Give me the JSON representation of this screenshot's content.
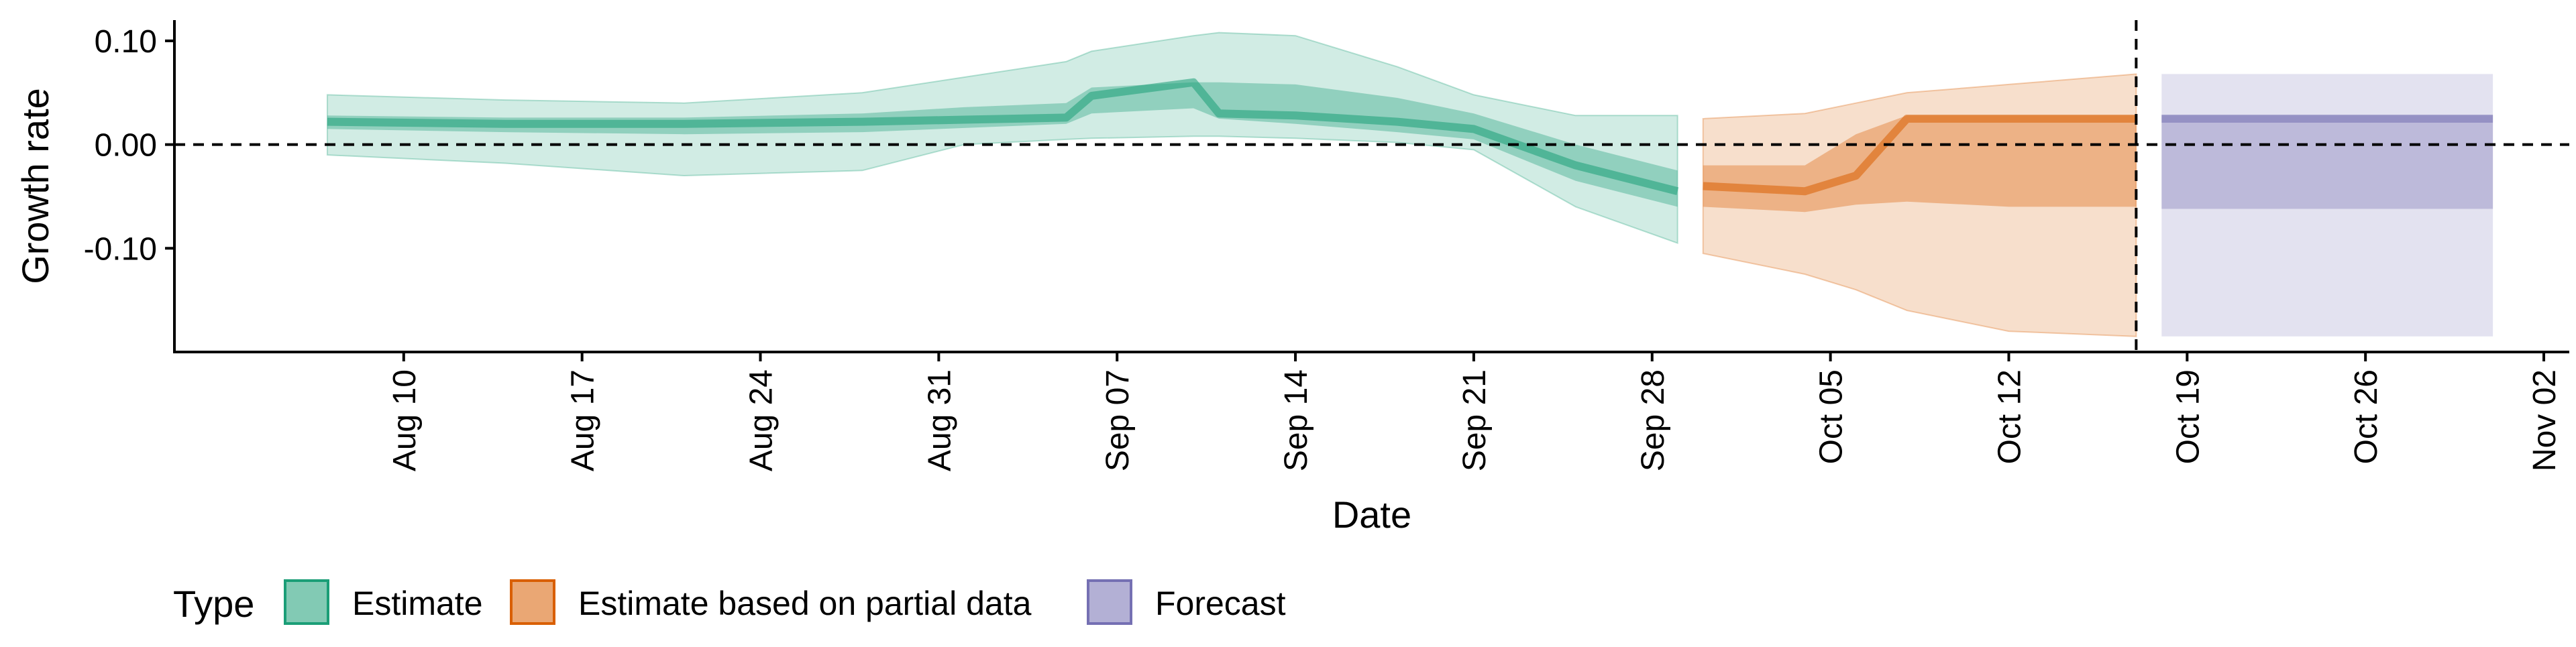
{
  "chart_data": {
    "type": "area",
    "title": "",
    "xlabel": "Date",
    "ylabel": "Growth rate",
    "ylim": [
      -0.2,
      0.12
    ],
    "xlim": [
      "2020-08-01",
      "2020-11-03"
    ],
    "y_ticks": [
      0.1,
      0.0,
      -0.1
    ],
    "y_tick_labels": [
      "0.10",
      "0.00",
      "-0.10"
    ],
    "x_ticks": [
      "2020-08-10",
      "2020-08-17",
      "2020-08-24",
      "2020-08-31",
      "2020-09-07",
      "2020-09-14",
      "2020-09-21",
      "2020-09-28",
      "2020-10-05",
      "2020-10-12",
      "2020-10-19",
      "2020-10-26",
      "2020-11-02"
    ],
    "x_tick_labels": [
      "Aug 10",
      "Aug 17",
      "Aug 24",
      "Aug 31",
      "Sep 07",
      "Sep 14",
      "Sep 21",
      "Sep 28",
      "Oct 05",
      "Oct 12",
      "Oct 19",
      "Oct 26",
      "Nov 02"
    ],
    "reference_lines": {
      "horizontal_y": 0.0,
      "vertical_date": "2020-10-17",
      "style": "dashed"
    },
    "legend": {
      "title": "Type",
      "position": "bottom",
      "entries": [
        {
          "label": "Estimate",
          "color": "#1b9e77"
        },
        {
          "label": "Estimate based on partial data",
          "color": "#d95f02"
        },
        {
          "label": "Forecast",
          "color": "#7570b3"
        }
      ]
    },
    "series": [
      {
        "name": "Estimate",
        "color": "#1b9e77",
        "points": [
          {
            "x": "2020-08-07",
            "median": 0.022,
            "lo50": 0.015,
            "hi50": 0.028,
            "lo90": -0.01,
            "hi90": 0.048
          },
          {
            "x": "2020-08-14",
            "median": 0.02,
            "lo50": 0.012,
            "hi50": 0.026,
            "lo90": -0.018,
            "hi90": 0.043
          },
          {
            "x": "2020-08-21",
            "median": 0.02,
            "lo50": 0.01,
            "hi50": 0.026,
            "lo90": -0.03,
            "hi90": 0.04
          },
          {
            "x": "2020-08-28",
            "median": 0.022,
            "lo50": 0.012,
            "hi50": 0.03,
            "lo90": -0.025,
            "hi90": 0.05
          },
          {
            "x": "2020-09-01",
            "median": 0.024,
            "lo50": 0.016,
            "hi50": 0.036,
            "lo90": 0.0,
            "hi90": 0.065
          },
          {
            "x": "2020-09-05",
            "median": 0.026,
            "lo50": 0.02,
            "hi50": 0.04,
            "lo90": 0.005,
            "hi90": 0.08
          },
          {
            "x": "2020-09-06",
            "median": 0.047,
            "lo50": 0.03,
            "hi50": 0.055,
            "lo90": 0.006,
            "hi90": 0.09
          },
          {
            "x": "2020-09-10",
            "median": 0.06,
            "lo50": 0.035,
            "hi50": 0.06,
            "lo90": 0.008,
            "hi90": 0.105
          },
          {
            "x": "2020-09-11",
            "median": 0.03,
            "lo50": 0.025,
            "hi50": 0.06,
            "lo90": 0.008,
            "hi90": 0.108
          },
          {
            "x": "2020-09-14",
            "median": 0.028,
            "lo50": 0.02,
            "hi50": 0.058,
            "lo90": 0.006,
            "hi90": 0.105
          },
          {
            "x": "2020-09-18",
            "median": 0.022,
            "lo50": 0.012,
            "hi50": 0.045,
            "lo90": 0.002,
            "hi90": 0.075
          },
          {
            "x": "2020-09-21",
            "median": 0.015,
            "lo50": 0.005,
            "hi50": 0.03,
            "lo90": -0.005,
            "hi90": 0.048
          },
          {
            "x": "2020-09-25",
            "median": -0.02,
            "lo50": -0.035,
            "hi50": 0.0,
            "lo90": -0.06,
            "hi90": 0.028
          },
          {
            "x": "2020-09-29",
            "median": -0.045,
            "lo50": -0.06,
            "hi50": -0.025,
            "lo90": -0.095,
            "hi90": 0.028
          }
        ]
      },
      {
        "name": "Estimate based on partial data",
        "color": "#d95f02",
        "points": [
          {
            "x": "2020-09-30",
            "median": -0.04,
            "lo50": -0.06,
            "hi50": -0.02,
            "lo90": -0.105,
            "hi90": 0.025
          },
          {
            "x": "2020-10-04",
            "median": -0.045,
            "lo50": -0.065,
            "hi50": -0.02,
            "lo90": -0.125,
            "hi90": 0.03
          },
          {
            "x": "2020-10-06",
            "median": -0.03,
            "lo50": -0.058,
            "hi50": 0.01,
            "lo90": -0.14,
            "hi90": 0.04
          },
          {
            "x": "2020-10-08",
            "median": 0.025,
            "lo50": -0.055,
            "hi50": 0.028,
            "lo90": -0.16,
            "hi90": 0.05
          },
          {
            "x": "2020-10-12",
            "median": 0.025,
            "lo50": -0.06,
            "hi50": 0.028,
            "lo90": -0.18,
            "hi90": 0.058
          },
          {
            "x": "2020-10-17",
            "median": 0.025,
            "lo50": -0.06,
            "hi50": 0.028,
            "lo90": -0.185,
            "hi90": 0.068
          }
        ]
      },
      {
        "name": "Forecast",
        "color": "#7570b3",
        "points": [
          {
            "x": "2020-10-18",
            "median": 0.025,
            "lo50": -0.062,
            "hi50": 0.028,
            "lo90": -0.185,
            "hi90": 0.068
          },
          {
            "x": "2020-10-31",
            "median": 0.025,
            "lo50": -0.062,
            "hi50": 0.028,
            "lo90": -0.185,
            "hi90": 0.068
          }
        ]
      }
    ]
  }
}
